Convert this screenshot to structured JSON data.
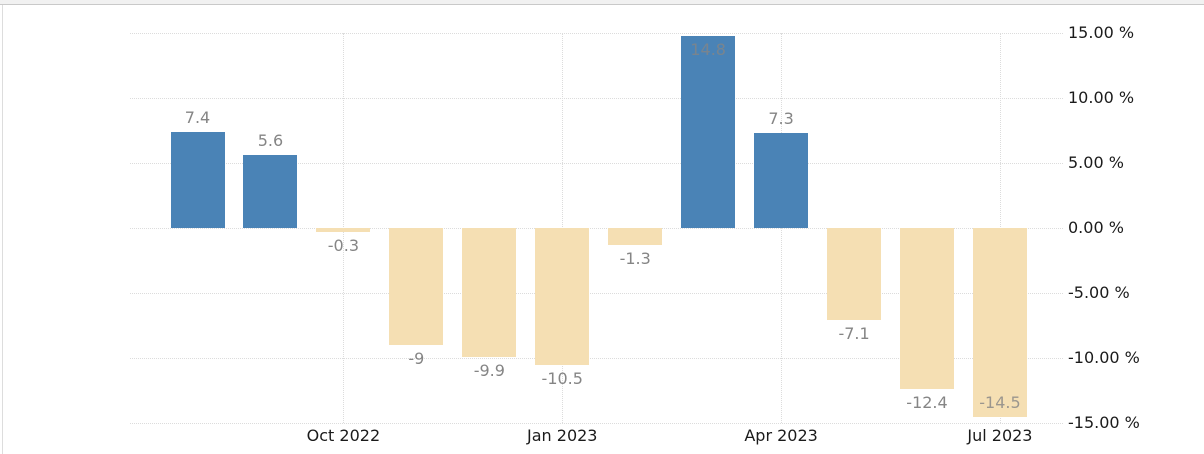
{
  "chart_data": {
    "type": "bar",
    "title": "",
    "unit": "%",
    "values": [
      7.4,
      5.6,
      -0.3,
      -9,
      -9.9,
      -10.5,
      -1.3,
      14.8,
      7.3,
      -7.1,
      -12.4,
      -14.5
    ],
    "bar_value_labels": [
      "7.4",
      "5.6",
      "-0.3",
      "-9",
      "-9.9",
      "-10.5",
      "-1.3",
      "14.8",
      "7.3",
      "-7.1",
      "-12.4",
      "-14.5"
    ],
    "x_ticks": [
      {
        "bar_index": 2,
        "label": "Oct 2022"
      },
      {
        "bar_index": 5,
        "label": "Jan 2023"
      },
      {
        "bar_index": 8,
        "label": "Apr 2023"
      },
      {
        "bar_index": 11,
        "label": "Jul 2023"
      }
    ],
    "y_ticks": [
      {
        "value": 15,
        "label": "15.00 %"
      },
      {
        "value": 10,
        "label": "10.00 %"
      },
      {
        "value": 5,
        "label": "5.00 %"
      },
      {
        "value": 0,
        "label": "0.00 %"
      },
      {
        "value": -5,
        "label": "-5.00 %"
      },
      {
        "value": -10,
        "label": "-10.00 %"
      },
      {
        "value": -15,
        "label": "-15.00 %"
      }
    ],
    "ylim": [
      -15,
      15
    ],
    "grid": "dotted",
    "legend": "none",
    "y_axis_side": "right",
    "colors": {
      "positive_bar": "#4a83b6",
      "negative_bar": "#f5dfb3",
      "value_label": "#858585",
      "axis_text": "#1b1b1b",
      "gridline": "#dcdcdc",
      "background": "#ffffff"
    }
  }
}
